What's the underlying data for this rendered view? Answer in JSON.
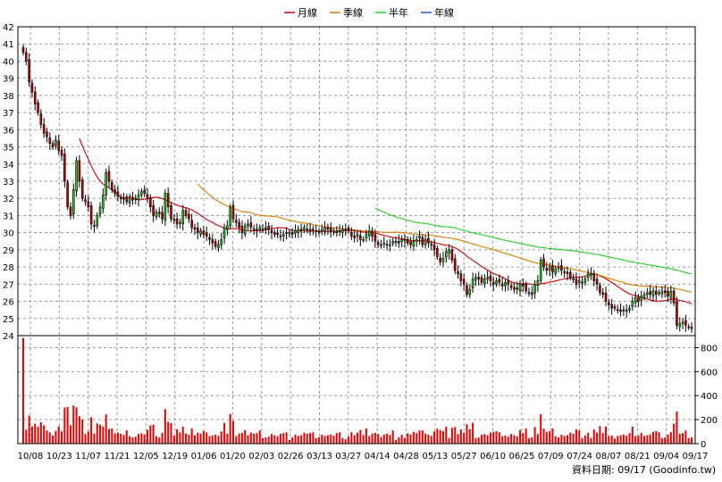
{
  "chart_data": {
    "type": "candlestick",
    "legend": {
      "placement": "top-center",
      "items": [
        {
          "label": "月線",
          "color": "#cc0000"
        },
        {
          "label": "季線",
          "color": "#e07a00"
        },
        {
          "label": "半年",
          "color": "#22cc22"
        },
        {
          "label": "年線",
          "color": "#1f5fd6"
        }
      ]
    },
    "price_axis": {
      "min": 24,
      "max": 42,
      "ticks": [
        "24",
        "25",
        "26",
        "27",
        "28",
        "29",
        "30",
        "31",
        "32",
        "33",
        "34",
        "35",
        "36",
        "37",
        "38",
        "39",
        "40",
        "41",
        "42"
      ]
    },
    "volume_axis": {
      "min": 0,
      "max": 900,
      "ticks": [
        "0",
        "200",
        "400",
        "600",
        "800"
      ]
    },
    "x_ticks": [
      "10/08",
      "10/23",
      "11/07",
      "11/21",
      "12/05",
      "12/19",
      "01/06",
      "01/20",
      "02/03",
      "02/26",
      "03/13",
      "03/27",
      "04/14",
      "04/28",
      "05/13",
      "05/27",
      "06/10",
      "06/25",
      "07/09",
      "07/24",
      "08/07",
      "08/21",
      "09/04",
      "09/17"
    ],
    "source_label": "資料日期: 09/17  (Goodinfo.tw)",
    "colors": {
      "up": "#22cc22",
      "down": "#cc0000",
      "grid": "#999999",
      "frame": "#000000"
    },
    "close_series": [
      40.5,
      40.0,
      38.8,
      38.2,
      37.5,
      37.0,
      36.3,
      35.8,
      35.6,
      35.2,
      35.0,
      35.4,
      34.8,
      34.5,
      33.0,
      31.5,
      31.0,
      32.5,
      34.2,
      33.0,
      32.0,
      31.8,
      31.5,
      30.5,
      30.4,
      31.0,
      31.5,
      32.2,
      33.5,
      33.0,
      32.5,
      32.3,
      32.1,
      32.0,
      32.0,
      31.8,
      32.0,
      31.9,
      32.0,
      32.2,
      32.4,
      32.3,
      32.0,
      31.5,
      31.0,
      31.2,
      31.1,
      30.8,
      32.3,
      31.5,
      30.8,
      30.8,
      30.5,
      30.6,
      31.3,
      31.0,
      30.8,
      30.3,
      30.2,
      30.0,
      30.1,
      29.9,
      29.8,
      29.6,
      29.4,
      29.2,
      29.3,
      29.6,
      30.3,
      30.4,
      31.5,
      30.8,
      30.6,
      30.3,
      30.0,
      30.4,
      30.5,
      30.3,
      30.2,
      30.1,
      30.3,
      30.2,
      30.3,
      30.2,
      30.0,
      29.9,
      29.9,
      29.8,
      29.9,
      30.0,
      30.0,
      29.9,
      30.1,
      30.2,
      30.1,
      30.3,
      30.2,
      30.1,
      30.2,
      30.1,
      30.0,
      30.2,
      30.3,
      30.2,
      30.1,
      30.1,
      30.0,
      30.1,
      30.2,
      30.2,
      30.1,
      29.8,
      29.7,
      29.9,
      29.6,
      29.6,
      29.9,
      30.1,
      29.8,
      29.5,
      29.3,
      29.3,
      29.4,
      29.3,
      29.3,
      29.5,
      29.5,
      29.4,
      29.6,
      29.6,
      29.4,
      29.3,
      29.5,
      29.6,
      29.8,
      29.3,
      29.6,
      29.4,
      29.3,
      29.0,
      28.6,
      28.3,
      28.5,
      28.9,
      29.0,
      28.4,
      27.8,
      27.6,
      27.2,
      27.0,
      26.4,
      26.7,
      27.3,
      27.4,
      27.3,
      27.1,
      27.3,
      27.4,
      27.2,
      27.0,
      27.2,
      27.1,
      26.9,
      27.1,
      27.0,
      26.8,
      26.7,
      26.7,
      27.0,
      26.9,
      26.6,
      26.5,
      26.4,
      27.0,
      27.2,
      28.4,
      28.0,
      27.8,
      28.0,
      27.7,
      27.9,
      28.0,
      27.8,
      27.7,
      27.6,
      27.4,
      27.3,
      27.0,
      27.2,
      27.1,
      27.3,
      27.6,
      27.6,
      27.2,
      27.0,
      26.5,
      26.4,
      26.0,
      25.8,
      25.6,
      25.6,
      25.5,
      25.4,
      25.5,
      25.5,
      25.6,
      26.0,
      26.2,
      26.0,
      26.3,
      26.4,
      26.5,
      26.4,
      26.6,
      26.4,
      26.5,
      26.6,
      26.5,
      26.3,
      26.6,
      25.9,
      24.6,
      24.7,
      24.8,
      24.6,
      24.5,
      24.4
    ]
  }
}
